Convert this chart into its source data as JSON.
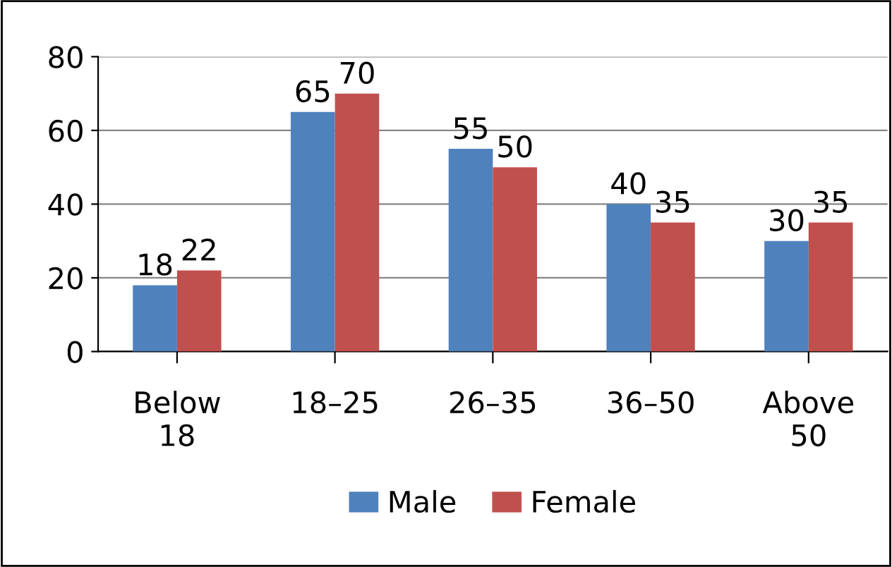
{
  "chart_data": {
    "type": "bar",
    "categories": [
      "Below 18",
      "18–25",
      "26–35",
      "36–50",
      "Above 50"
    ],
    "series": [
      {
        "name": "Male",
        "color": "#4f81bd",
        "values": [
          18,
          65,
          55,
          40,
          30
        ]
      },
      {
        "name": "Female",
        "color": "#c0504d",
        "values": [
          22,
          70,
          50,
          35,
          35
        ]
      }
    ],
    "ylim": [
      0,
      80
    ],
    "yticks": [
      0,
      20,
      40,
      60,
      80
    ],
    "grid": "y",
    "legend": "bottom",
    "data_labels": true
  }
}
